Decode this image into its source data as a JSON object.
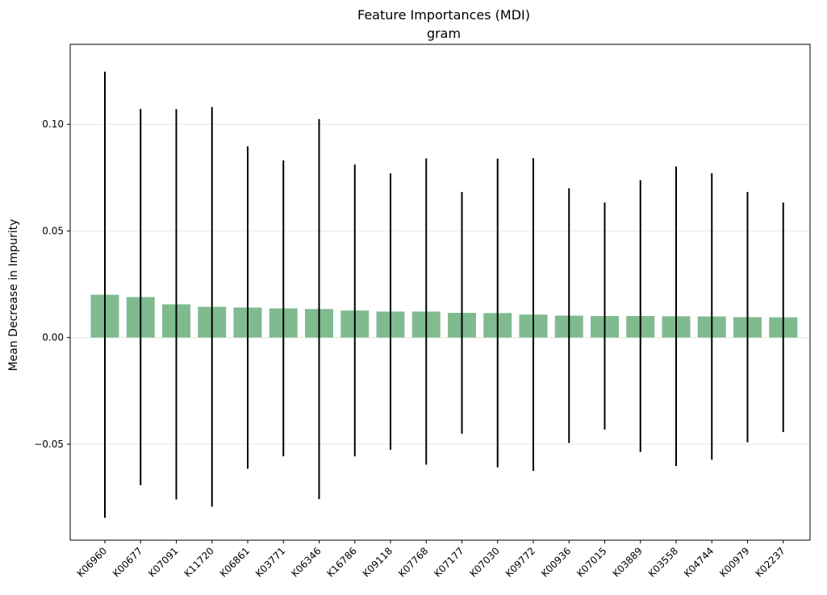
{
  "chart_data": {
    "type": "bar",
    "title": "Feature Importances (MDI)",
    "subtitle": "gram",
    "xlabel": "",
    "ylabel": "Mean Decrease in Impurity",
    "categories": [
      "K06960",
      "K00677",
      "K07091",
      "K11720",
      "K06861",
      "K03771",
      "K06346",
      "K16786",
      "K09118",
      "K07768",
      "K07177",
      "K07030",
      "K09772",
      "K00936",
      "K07015",
      "K03889",
      "K03558",
      "K04744",
      "K00979",
      "K02237"
    ],
    "values": [
      0.0201,
      0.019,
      0.0156,
      0.0144,
      0.0141,
      0.0137,
      0.0134,
      0.0127,
      0.0122,
      0.0122,
      0.0116,
      0.0115,
      0.0108,
      0.0103,
      0.0101,
      0.0101,
      0.01,
      0.0099,
      0.0096,
      0.0095
    ],
    "errors": [
      0.1046,
      0.0882,
      0.0915,
      0.0937,
      0.0756,
      0.0694,
      0.0891,
      0.0684,
      0.0648,
      0.0718,
      0.0567,
      0.0724,
      0.0733,
      0.0597,
      0.0532,
      0.0637,
      0.0702,
      0.0672,
      0.0587,
      0.0538
    ],
    "ylim": [
      -0.095,
      0.1375
    ],
    "yticks": [
      -0.05,
      0.0,
      0.05,
      0.1
    ],
    "ytick_labels": [
      "−0.05",
      "0.00",
      "0.05",
      "0.10"
    ],
    "grid": "horizontal",
    "colors": {
      "bar": "#80bb90",
      "error": "#000000",
      "grid": "#e6e6e6",
      "axis": "#000000"
    }
  }
}
